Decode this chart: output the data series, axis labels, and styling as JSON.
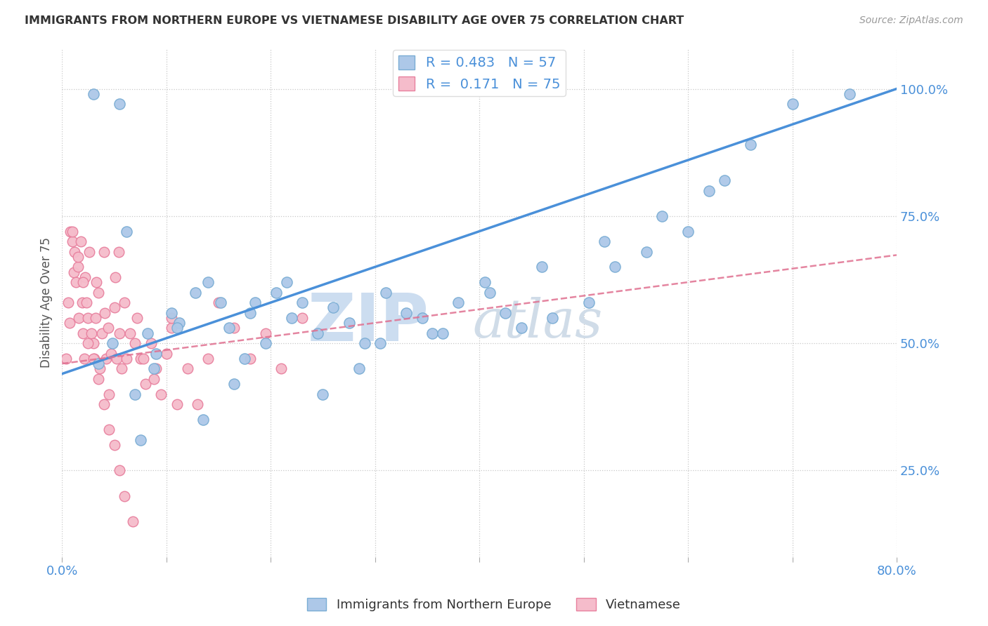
{
  "title": "IMMIGRANTS FROM NORTHERN EUROPE VS VIETNAMESE DISABILITY AGE OVER 75 CORRELATION CHART",
  "source": "Source: ZipAtlas.com",
  "ylabel": "Disability Age Over 75",
  "xlim": [
    0.0,
    80.0
  ],
  "ylim": [
    8.0,
    108.0
  ],
  "xtick_pos": [
    0,
    10,
    20,
    30,
    40,
    50,
    60,
    70,
    80
  ],
  "xticklabels": [
    "0.0%",
    "",
    "",
    "",
    "",
    "",
    "",
    "",
    "80.0%"
  ],
  "ytick_pos": [
    25,
    50,
    75,
    100
  ],
  "yticklabels": [
    "25.0%",
    "50.0%",
    "75.0%",
    "100.0%"
  ],
  "blue_R": 0.483,
  "blue_N": 57,
  "pink_R": 0.171,
  "pink_N": 75,
  "blue_color": "#adc8e8",
  "blue_edge": "#7aadd4",
  "pink_color": "#f5bccb",
  "pink_edge": "#e8809e",
  "blue_line_color": "#4a90d9",
  "pink_line_color": "#e07090",
  "watermark_zip": "ZIP",
  "watermark_atlas": "atlas",
  "watermark_color": "#ccddf0",
  "legend_label_blue": "Immigrants from Northern Europe",
  "legend_label_pink": "Vietnamese",
  "blue_scatter_x": [
    3.5,
    4.8,
    6.2,
    7.0,
    8.2,
    9.0,
    10.5,
    11.2,
    12.8,
    14.0,
    15.2,
    16.0,
    17.5,
    18.0,
    19.5,
    20.5,
    22.0,
    23.0,
    24.5,
    26.0,
    27.5,
    29.0,
    31.0,
    33.0,
    35.5,
    38.0,
    40.5,
    42.5,
    44.0,
    47.0,
    50.5,
    53.0,
    56.0,
    60.0,
    63.5,
    66.0,
    70.0,
    75.5,
    3.0,
    5.5,
    7.5,
    8.8,
    11.0,
    13.5,
    16.5,
    18.5,
    21.5,
    25.0,
    28.5,
    30.5,
    34.5,
    36.5,
    41.0,
    46.0,
    52.0,
    57.5,
    62.0
  ],
  "blue_scatter_y": [
    46,
    50,
    72,
    40,
    52,
    48,
    56,
    54,
    60,
    62,
    58,
    53,
    47,
    56,
    50,
    60,
    55,
    58,
    52,
    57,
    54,
    50,
    60,
    56,
    52,
    58,
    62,
    56,
    53,
    55,
    58,
    65,
    68,
    72,
    82,
    89,
    97,
    99,
    99,
    97,
    31,
    45,
    53,
    35,
    42,
    58,
    62,
    40,
    45,
    50,
    55,
    52,
    60,
    65,
    70,
    75,
    80
  ],
  "pink_scatter_x": [
    0.4,
    0.6,
    0.7,
    0.8,
    1.0,
    1.1,
    1.2,
    1.3,
    1.5,
    1.6,
    1.8,
    1.9,
    2.0,
    2.1,
    2.2,
    2.3,
    2.5,
    2.6,
    2.8,
    3.0,
    3.1,
    3.2,
    3.3,
    3.5,
    3.6,
    3.8,
    4.0,
    4.1,
    4.2,
    4.4,
    4.5,
    4.7,
    5.0,
    5.1,
    5.2,
    5.4,
    5.5,
    5.7,
    6.0,
    6.2,
    6.5,
    7.0,
    7.2,
    7.5,
    8.0,
    8.5,
    9.0,
    9.5,
    10.0,
    10.5,
    11.0,
    12.0,
    13.0,
    14.0,
    15.0,
    16.5,
    18.0,
    19.5,
    21.0,
    23.0,
    1.0,
    1.5,
    2.0,
    2.5,
    3.0,
    3.5,
    4.0,
    4.5,
    5.0,
    5.5,
    6.0,
    6.8,
    7.8,
    8.8,
    10.5
  ],
  "pink_scatter_y": [
    47,
    58,
    54,
    72,
    70,
    64,
    68,
    62,
    65,
    55,
    70,
    58,
    52,
    47,
    63,
    58,
    55,
    68,
    52,
    50,
    47,
    55,
    62,
    60,
    45,
    52,
    68,
    56,
    47,
    53,
    40,
    48,
    57,
    63,
    47,
    68,
    52,
    45,
    58,
    47,
    52,
    50,
    55,
    47,
    42,
    50,
    45,
    40,
    48,
    53,
    38,
    45,
    38,
    47,
    58,
    53,
    47,
    52,
    45,
    55,
    72,
    67,
    62,
    50,
    47,
    43,
    38,
    33,
    30,
    25,
    20,
    15,
    47,
    43,
    55
  ]
}
